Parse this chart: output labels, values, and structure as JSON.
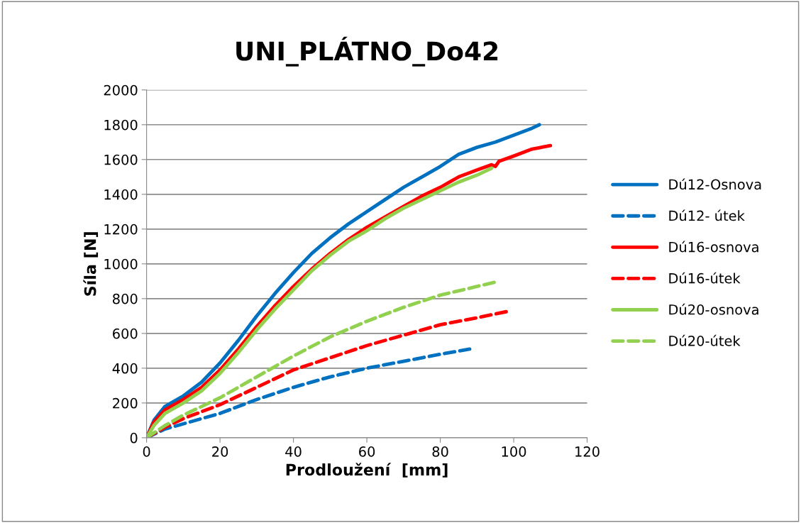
{
  "chart_data": {
    "type": "line",
    "title": "UNI_PLÁTNO_Do42",
    "xlabel": "Prodloužení  [mm]",
    "ylabel": "Síla [N]",
    "xlim": [
      0,
      120
    ],
    "xticks": [
      0,
      20,
      40,
      60,
      80,
      100,
      120
    ],
    "ylim": [
      0,
      2000
    ],
    "yticks": [
      0,
      200,
      400,
      600,
      800,
      1000,
      1200,
      1400,
      1600,
      1800,
      2000
    ],
    "grid": "y",
    "legend": "right",
    "series": [
      {
        "name": "Dú12-Osnova",
        "color": "#0070c0",
        "line_style": "solid",
        "x": [
          0,
          2,
          5,
          10,
          15,
          20,
          25,
          30,
          35,
          40,
          45,
          50,
          55,
          60,
          65,
          70,
          75,
          80,
          85,
          90,
          95,
          100,
          105,
          107
        ],
        "values": [
          0,
          100,
          180,
          240,
          320,
          430,
          560,
          700,
          830,
          950,
          1060,
          1150,
          1230,
          1300,
          1370,
          1440,
          1500,
          1560,
          1630,
          1670,
          1700,
          1740,
          1780,
          1800
        ]
      },
      {
        "name": "Dú12- útek",
        "color": "#0070c0",
        "line_style": "dashed",
        "x": [
          0,
          5,
          10,
          20,
          30,
          40,
          50,
          60,
          70,
          80,
          88
        ],
        "values": [
          0,
          50,
          80,
          140,
          220,
          290,
          350,
          400,
          440,
          480,
          510
        ]
      },
      {
        "name": "Dú16-osnova",
        "color": "#ff0000",
        "line_style": "solid",
        "x": [
          0,
          2,
          5,
          10,
          15,
          20,
          25,
          30,
          35,
          40,
          45,
          50,
          55,
          60,
          65,
          70,
          75,
          80,
          85,
          90,
          94,
          95,
          96,
          100,
          105,
          110
        ],
        "values": [
          0,
          90,
          160,
          220,
          290,
          390,
          510,
          640,
          760,
          870,
          970,
          1060,
          1140,
          1210,
          1270,
          1330,
          1390,
          1440,
          1500,
          1540,
          1570,
          1560,
          1590,
          1620,
          1660,
          1680
        ]
      },
      {
        "name": "Dú16-útek",
        "color": "#ff0000",
        "line_style": "dashed",
        "x": [
          0,
          5,
          10,
          20,
          30,
          40,
          50,
          60,
          70,
          80,
          90,
          98
        ],
        "values": [
          0,
          60,
          110,
          190,
          290,
          390,
          460,
          530,
          590,
          650,
          690,
          725
        ]
      },
      {
        "name": "Dú20-osnova",
        "color": "#92d050",
        "line_style": "solid",
        "x": [
          0,
          2,
          5,
          10,
          15,
          20,
          25,
          30,
          35,
          40,
          45,
          50,
          55,
          60,
          65,
          70,
          75,
          80,
          85,
          90,
          94
        ],
        "values": [
          0,
          70,
          140,
          200,
          270,
          370,
          490,
          620,
          740,
          850,
          960,
          1050,
          1130,
          1190,
          1260,
          1320,
          1370,
          1420,
          1470,
          1510,
          1550
        ]
      },
      {
        "name": "Dú20-útek",
        "color": "#92d050",
        "line_style": "dashed",
        "x": [
          0,
          5,
          10,
          20,
          30,
          40,
          50,
          60,
          70,
          80,
          90,
          95
        ],
        "values": [
          0,
          70,
          130,
          230,
          350,
          470,
          580,
          670,
          750,
          820,
          870,
          895
        ]
      }
    ]
  }
}
